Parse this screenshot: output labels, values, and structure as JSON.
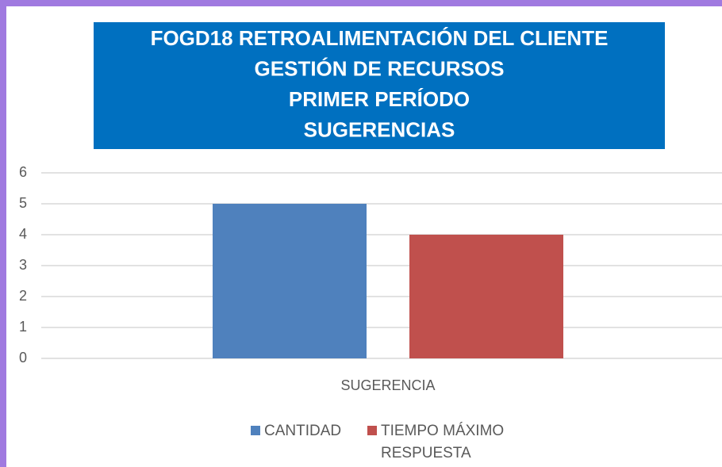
{
  "chart_data": {
    "type": "bar",
    "title": [
      "FOGD18 RETROALIMENTACIÓN  DEL CLIENTE",
      "GESTIÓN DE  RECURSOS",
      "PRIMER PERÍODO",
      "SUGERENCIAS"
    ],
    "categories": [
      "SUGERENCIA"
    ],
    "series": [
      {
        "name": "CANTIDAD",
        "color": "#4f81bd",
        "values": [
          5
        ]
      },
      {
        "name": "TIEMPO MÁXIMO RESPUESTA",
        "color": "#c0504d",
        "values": [
          4
        ]
      }
    ],
    "ylim": [
      0,
      6
    ],
    "yticks": [
      0,
      1,
      2,
      3,
      4,
      5,
      6
    ],
    "grid": true,
    "legend": "bottom"
  }
}
